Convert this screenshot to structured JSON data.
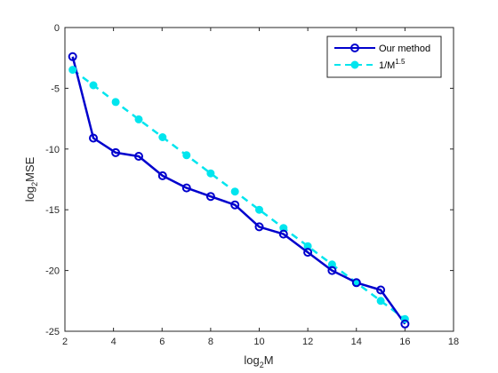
{
  "chart_data": {
    "type": "line",
    "xlabel_base": "log",
    "xlabel_sub": "2",
    "xlabel_rest": "M",
    "ylabel_base": "log",
    "ylabel_sub": "2",
    "ylabel_rest": "MSE",
    "xlim": [
      2,
      18
    ],
    "ylim": [
      -25,
      0
    ],
    "xticks": [
      2,
      4,
      6,
      8,
      10,
      12,
      14,
      16,
      18
    ],
    "yticks": [
      0,
      -5,
      -10,
      -15,
      -20,
      -25
    ],
    "grid": false,
    "legend_position": "top-right",
    "series": [
      {
        "name": "Our method",
        "color": "#0000CD",
        "style": "solid",
        "marker": "open-circle",
        "x": [
          2.32,
          3.17,
          4.09,
          5.04,
          6.02,
          7.01,
          8.0,
          9.0,
          10.0,
          11.0,
          12.0,
          13.0,
          14.0,
          15.0,
          16.0
        ],
        "y": [
          -2.4,
          -9.1,
          -10.3,
          -10.6,
          -12.2,
          -13.2,
          -13.9,
          -14.6,
          -16.4,
          -17.0,
          -18.5,
          -20.0,
          -21.0,
          -21.6,
          -24.4
        ]
      },
      {
        "name_base": "1/M",
        "name_sup": "1.5",
        "color": "#00E5EE",
        "style": "dashed",
        "marker": "filled-circle",
        "x": [
          2.32,
          3.17,
          4.09,
          5.04,
          6.02,
          7.01,
          8.0,
          9.0,
          10.0,
          11.0,
          12.0,
          13.0,
          14.0,
          15.0,
          16.0
        ],
        "y": [
          -3.48,
          -4.75,
          -6.13,
          -7.56,
          -9.03,
          -10.51,
          -12.0,
          -13.5,
          -15.0,
          -16.5,
          -18.0,
          -19.5,
          -21.0,
          -22.5,
          -24.0
        ]
      }
    ]
  }
}
